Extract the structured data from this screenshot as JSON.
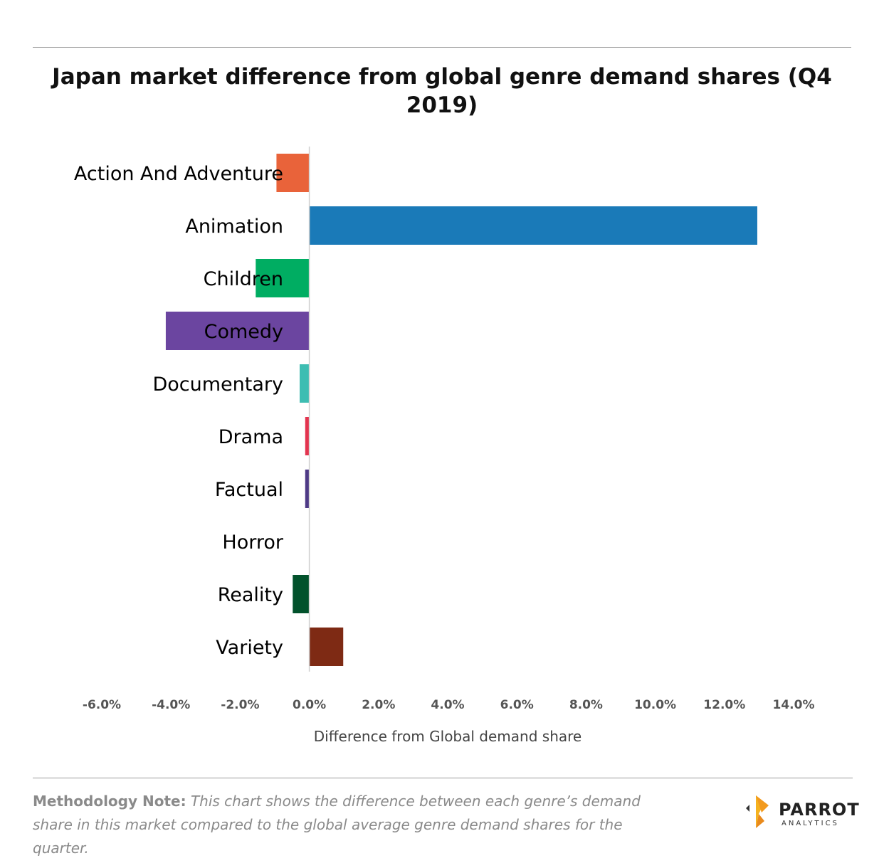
{
  "title": "Japan market difference from global genre demand shares (Q4 2019)",
  "chart_data": {
    "type": "bar",
    "orientation": "horizontal",
    "categories": [
      "Action And Adventure",
      "Animation",
      "Children",
      "Comedy",
      "Documentary",
      "Drama",
      "Factual",
      "Horror",
      "Reality",
      "Variety"
    ],
    "values": [
      -0.95,
      12.95,
      -1.55,
      -4.15,
      -0.28,
      -0.12,
      -0.12,
      0.0,
      -0.48,
      0.98
    ],
    "colors": [
      "#E9633A",
      "#1A7AB8",
      "#00AD62",
      "#6B45A0",
      "#3EBDB2",
      "#E3344F",
      "#4E3A86",
      "#F8A11B",
      "#02522C",
      "#7E2A14"
    ],
    "xlabel": "Difference from Global demand share",
    "xlim": [
      -6,
      14
    ],
    "xticks": [
      "-6.0%",
      "-4.0%",
      "-2.0%",
      "0.0%",
      "2.0%",
      "4.0%",
      "6.0%",
      "8.0%",
      "10.0%",
      "12.0%",
      "14.0%"
    ],
    "grid": false,
    "legend": "none"
  },
  "methodology": {
    "lead": "Methodology Note:",
    "body": "This chart shows the difference between each genre’s demand share in this market compared to the global average genre demand shares for the quarter."
  },
  "logo": {
    "brand": "PARROT",
    "sub": "ANALYTICS"
  }
}
